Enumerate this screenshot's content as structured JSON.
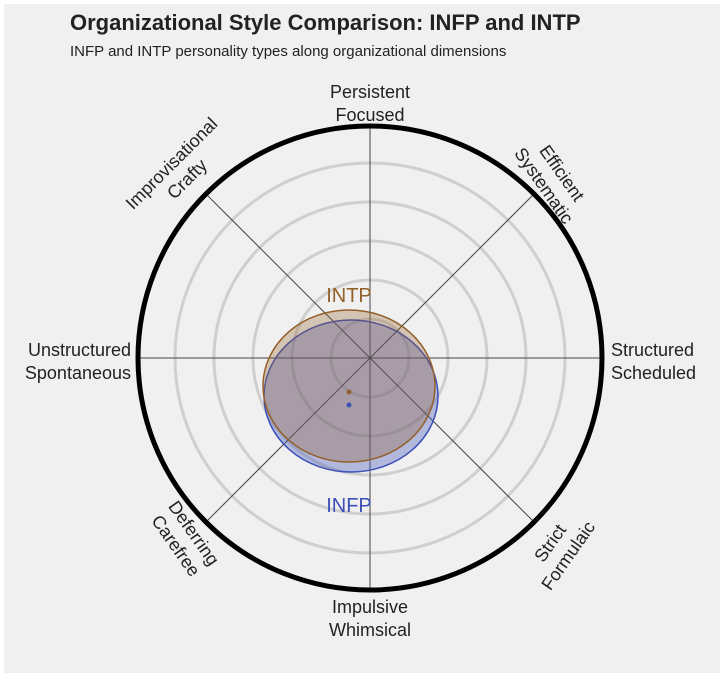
{
  "header": {
    "title": "Organizational Style Comparison: INFP and INTP",
    "subtitle": "INFP and INTP personality types along organizational dimensions"
  },
  "axes": [
    {
      "lines": [
        "Persistent",
        "Focused"
      ]
    },
    {
      "lines": [
        "Efficient",
        "Systematic"
      ]
    },
    {
      "lines": [
        "Structured",
        "Scheduled"
      ]
    },
    {
      "lines": [
        "Strict",
        "Formulaic"
      ]
    },
    {
      "lines": [
        "Impulsive",
        "Whimsical"
      ]
    },
    {
      "lines": [
        "Deferring",
        "Carefree"
      ]
    },
    {
      "lines": [
        "Unstructured",
        "Spontaneous"
      ]
    },
    {
      "lines": [
        "Improvisational",
        "Crafty"
      ]
    }
  ],
  "types": [
    {
      "label": "INTP",
      "color": "#94602a"
    },
    {
      "label": "INFP",
      "color": "#3d50b8"
    }
  ]
}
